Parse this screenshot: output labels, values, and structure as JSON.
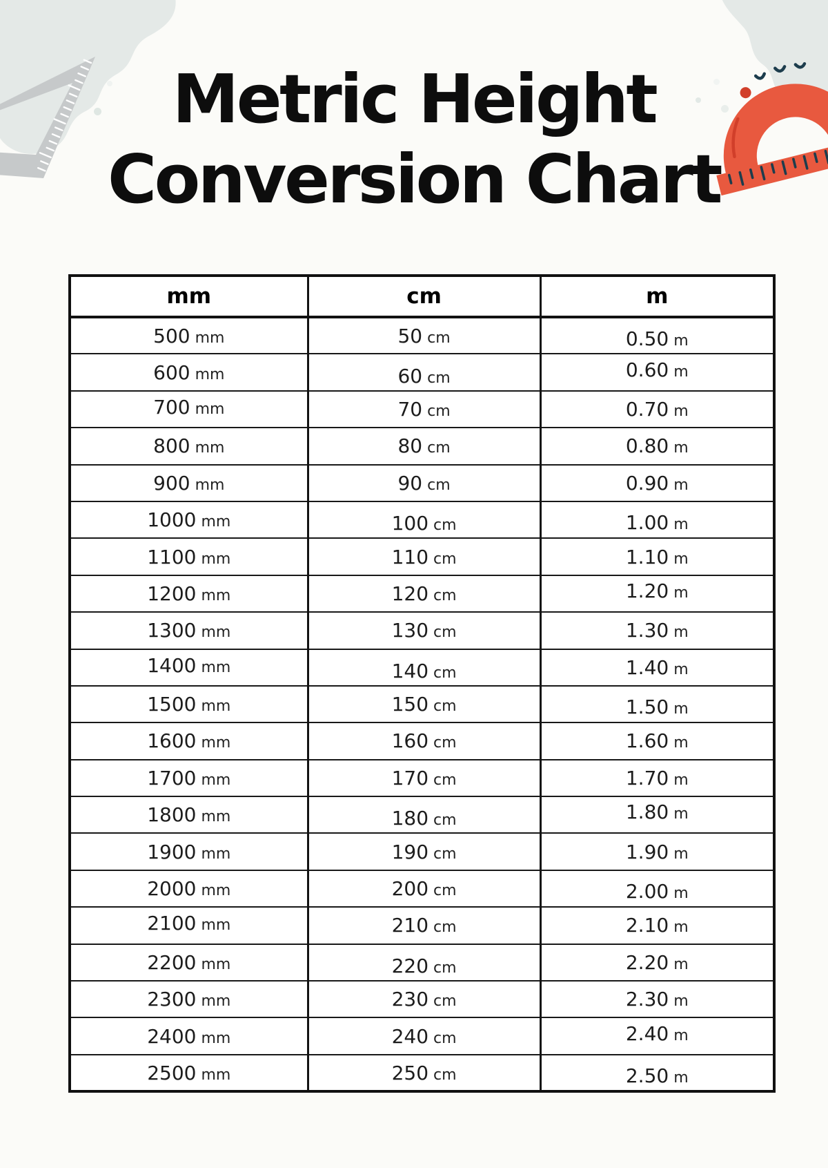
{
  "title": {
    "line1": "Metric Height",
    "line2": "Conversion Chart"
  },
  "table": {
    "headers": [
      "mm",
      "cm",
      "m"
    ],
    "rows": [
      [
        "500 mm",
        "50 cm",
        "0.50 m"
      ],
      [
        "600 mm",
        "60 cm",
        "0.60 m"
      ],
      [
        "700 mm",
        "70 cm",
        "0.70 m"
      ],
      [
        "800 mm",
        "80 cm",
        "0.80 m"
      ],
      [
        "900 mm",
        "90 cm",
        "0.90 m"
      ],
      [
        "1000 mm",
        "100 cm",
        "1.00 m"
      ],
      [
        "1100 mm",
        "110 cm",
        "1.10 m"
      ],
      [
        "1200 mm",
        "120 cm",
        "1.20 m"
      ],
      [
        "1300 mm",
        "130 cm",
        "1.30 m"
      ],
      [
        "1400 mm",
        "140 cm",
        "1.40 m"
      ],
      [
        "1500 mm",
        "150 cm",
        "1.50 m"
      ],
      [
        "1600 mm",
        "160 cm",
        "1.60 m"
      ],
      [
        "1700 mm",
        "170 cm",
        "1.70 m"
      ],
      [
        "1800 mm",
        "180 cm",
        "1.80 m"
      ],
      [
        "1900 mm",
        "190 cm",
        "1.90 m"
      ],
      [
        "2000 mm",
        "200 cm",
        "2.00 m"
      ],
      [
        "2100 mm",
        "210 cm",
        "2.10 m"
      ],
      [
        "2200 mm",
        "220 cm",
        "2.20 m"
      ],
      [
        "2300 mm",
        "230 cm",
        "2.30 m"
      ],
      [
        "2400 mm",
        "240 cm",
        "2.40 m"
      ],
      [
        "2500 mm",
        "250 cm",
        "2.50 m"
      ]
    ]
  },
  "decorations": {
    "top_left": [
      "blob-shape",
      "set-square-icon",
      "dot",
      "dot"
    ],
    "top_right": [
      "blob-shape",
      "protractor-icon",
      "dot",
      "dot",
      "dot"
    ]
  },
  "colors": {
    "background": "#fbfbf8",
    "blob": "#e4e9e7",
    "set_square_gray": "#c6c9ca",
    "protractor_orange": "#e8593f",
    "protractor_ink": "#1d3d4d",
    "protractor_blush": "#d13f2a",
    "table_border": "#111111",
    "text": "#0d0d0d"
  }
}
